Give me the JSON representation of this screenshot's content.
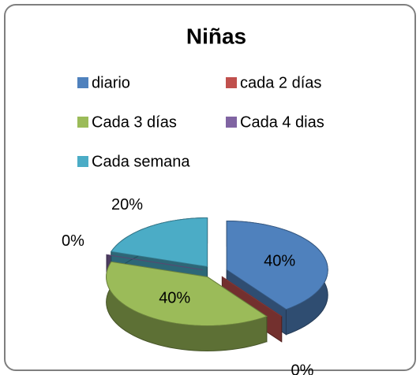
{
  "chart_data": {
    "type": "pie",
    "title": "Niñas",
    "categories": [
      "diario",
      "cada 2 días",
      "Cada 3 días",
      "Cada 4 dias",
      "Cada semana"
    ],
    "values": [
      40,
      0,
      40,
      0,
      20
    ],
    "value_labels": [
      "40%",
      "0%",
      "40%",
      "0%",
      "20%"
    ],
    "colors": [
      "#4f81bd",
      "#c0504d",
      "#9bbb59",
      "#8064a2",
      "#4bacc6"
    ],
    "legend": "top"
  }
}
